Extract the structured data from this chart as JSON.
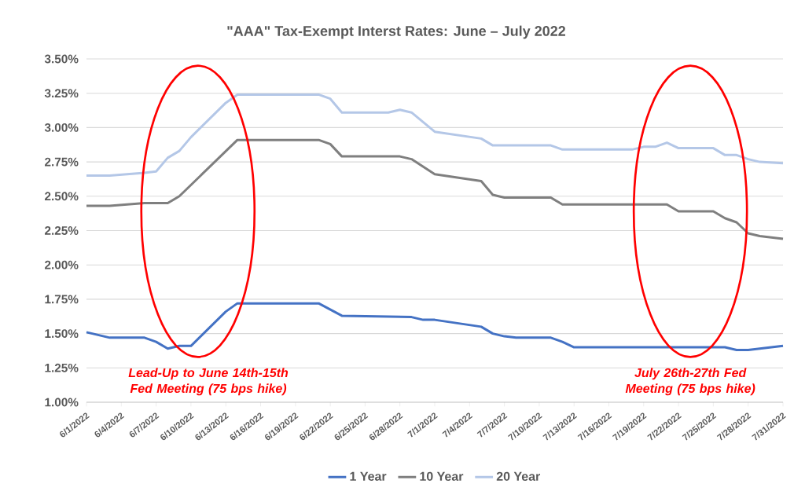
{
  "chart_data": {
    "type": "line",
    "title": "\"AAA\" Tax-Exempt Interst Rates: June – July 2022",
    "series": [
      {
        "name": "1 Year",
        "color": "#4472c4",
        "x": [
          "2022-06-01",
          "2022-06-03",
          "2022-06-06",
          "2022-06-07",
          "2022-06-08",
          "2022-06-09",
          "2022-06-10",
          "2022-06-13",
          "2022-06-14",
          "2022-06-21",
          "2022-06-23",
          "2022-06-29",
          "2022-06-30",
          "2022-07-01",
          "2022-07-05",
          "2022-07-06",
          "2022-07-07",
          "2022-07-08",
          "2022-07-11",
          "2022-07-12",
          "2022-07-13",
          "2022-07-26",
          "2022-07-27",
          "2022-07-28",
          "2022-07-31"
        ],
        "values": [
          1.51,
          1.47,
          1.47,
          1.44,
          1.39,
          1.41,
          1.41,
          1.66,
          1.72,
          1.72,
          1.63,
          1.62,
          1.6,
          1.6,
          1.55,
          1.5,
          1.48,
          1.47,
          1.47,
          1.44,
          1.4,
          1.4,
          1.38,
          1.38,
          1.41
        ]
      },
      {
        "name": "10 Year",
        "color": "#7f7f7f",
        "x": [
          "2022-06-01",
          "2022-06-03",
          "2022-06-06",
          "2022-06-08",
          "2022-06-09",
          "2022-06-14",
          "2022-06-21",
          "2022-06-22",
          "2022-06-23",
          "2022-06-28",
          "2022-06-29",
          "2022-07-01",
          "2022-07-05",
          "2022-07-06",
          "2022-07-07",
          "2022-07-11",
          "2022-07-12",
          "2022-07-21",
          "2022-07-22",
          "2022-07-25",
          "2022-07-26",
          "2022-07-27",
          "2022-07-28",
          "2022-07-29",
          "2022-07-31"
        ],
        "values": [
          2.43,
          2.43,
          2.45,
          2.45,
          2.5,
          2.91,
          2.91,
          2.88,
          2.79,
          2.79,
          2.77,
          2.66,
          2.61,
          2.51,
          2.49,
          2.49,
          2.44,
          2.44,
          2.39,
          2.39,
          2.34,
          2.31,
          2.23,
          2.21,
          2.19
        ]
      },
      {
        "name": "20 Year",
        "color": "#b4c7e7",
        "x": [
          "2022-06-01",
          "2022-06-03",
          "2022-06-06",
          "2022-06-07",
          "2022-06-08",
          "2022-06-09",
          "2022-06-10",
          "2022-06-13",
          "2022-06-14",
          "2022-06-21",
          "2022-06-22",
          "2022-06-23",
          "2022-06-27",
          "2022-06-28",
          "2022-06-29",
          "2022-07-01",
          "2022-07-05",
          "2022-07-06",
          "2022-07-11",
          "2022-07-12",
          "2022-07-18",
          "2022-07-19",
          "2022-07-20",
          "2022-07-21",
          "2022-07-22",
          "2022-07-25",
          "2022-07-26",
          "2022-07-27",
          "2022-07-28",
          "2022-07-29",
          "2022-07-31"
        ],
        "values": [
          2.65,
          2.65,
          2.67,
          2.68,
          2.78,
          2.83,
          2.93,
          3.18,
          3.24,
          3.24,
          3.21,
          3.11,
          3.11,
          3.13,
          3.11,
          2.97,
          2.92,
          2.87,
          2.87,
          2.84,
          2.84,
          2.86,
          2.86,
          2.89,
          2.85,
          2.85,
          2.8,
          2.8,
          2.77,
          2.75,
          2.74
        ]
      }
    ],
    "xlim": [
      "2022-06-01",
      "2022-07-31"
    ],
    "xticks": [
      {
        "value": "2022-06-01",
        "label": "6/1/2022"
      },
      {
        "value": "2022-06-04",
        "label": "6/4/2022"
      },
      {
        "value": "2022-06-07",
        "label": "6/7/2022"
      },
      {
        "value": "2022-06-10",
        "label": "6/10/2022"
      },
      {
        "value": "2022-06-13",
        "label": "6/13/2022"
      },
      {
        "value": "2022-06-16",
        "label": "6/16/2022"
      },
      {
        "value": "2022-06-19",
        "label": "6/19/2022"
      },
      {
        "value": "2022-06-22",
        "label": "6/22/2022"
      },
      {
        "value": "2022-06-25",
        "label": "6/25/2022"
      },
      {
        "value": "2022-06-28",
        "label": "6/28/2022"
      },
      {
        "value": "2022-07-01",
        "label": "7/1/2022"
      },
      {
        "value": "2022-07-04",
        "label": "7/4/2022"
      },
      {
        "value": "2022-07-07",
        "label": "7/7/2022"
      },
      {
        "value": "2022-07-10",
        "label": "7/10/2022"
      },
      {
        "value": "2022-07-13",
        "label": "7/13/2022"
      },
      {
        "value": "2022-07-16",
        "label": "7/16/2022"
      },
      {
        "value": "2022-07-19",
        "label": "7/19/2022"
      },
      {
        "value": "2022-07-22",
        "label": "7/22/2022"
      },
      {
        "value": "2022-07-25",
        "label": "7/25/2022"
      },
      {
        "value": "2022-07-28",
        "label": "7/28/2022"
      },
      {
        "value": "2022-07-31",
        "label": "7/31/2022"
      }
    ],
    "ylim": [
      1.0,
      3.5
    ],
    "yticks": [
      {
        "value": 1.0,
        "label": "1.00%"
      },
      {
        "value": 1.25,
        "label": "1.25%"
      },
      {
        "value": 1.5,
        "label": "1.50%"
      },
      {
        "value": 1.75,
        "label": "1.75%"
      },
      {
        "value": 2.0,
        "label": "2.00%"
      },
      {
        "value": 2.25,
        "label": "2.25%"
      },
      {
        "value": 2.5,
        "label": "2.50%"
      },
      {
        "value": 2.75,
        "label": "2.75%"
      },
      {
        "value": 3.0,
        "label": "3.00%"
      },
      {
        "value": 3.25,
        "label": "3.25%"
      },
      {
        "value": 3.5,
        "label": "3.50%"
      }
    ],
    "grid": "y",
    "legend": "bottom",
    "line_style": "solid",
    "marker": "none",
    "annotations": [
      "Lead-Up to June 14th-15th Fed Meeting (75 bps hike)",
      "July 26th-27th Fed Meeting (75 bps hike)"
    ]
  }
}
